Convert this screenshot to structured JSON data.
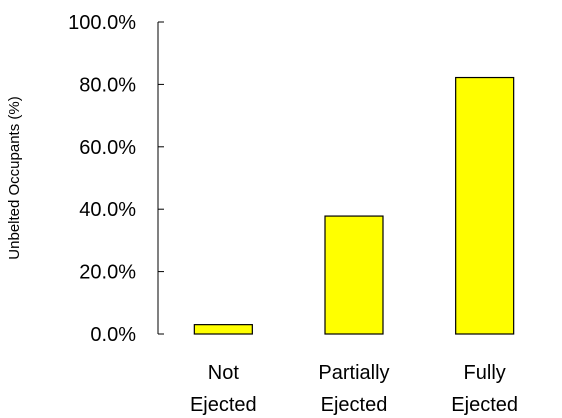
{
  "chart_data": {
    "type": "bar",
    "categories": [
      [
        "Not",
        "Ejected"
      ],
      [
        "Partially",
        "Ejected"
      ],
      [
        "Fully",
        "Ejected"
      ]
    ],
    "values": [
      3.0,
      37.8,
      82.2
    ],
    "ylabel": "Unbelted Occupants (%)",
    "xlabel": "",
    "ylim": [
      0,
      100
    ],
    "yticks": [
      0,
      20,
      40,
      60,
      80,
      100
    ],
    "ytick_labels": [
      "0.0%",
      "20.0%",
      "40.0%",
      "60.0%",
      "80.0%",
      "100.0%"
    ],
    "bar_color": "#ffff00",
    "bar_edge_color": "#000000",
    "grid": false,
    "legend": "none"
  }
}
